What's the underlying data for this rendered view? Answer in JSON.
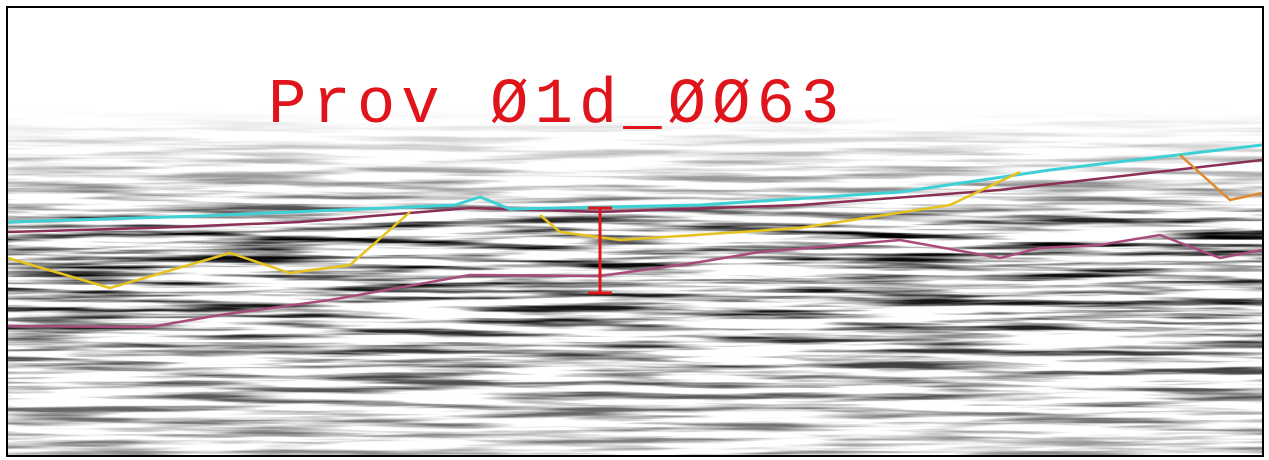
{
  "title": "Prov Ø1d_ØØ63"
}
